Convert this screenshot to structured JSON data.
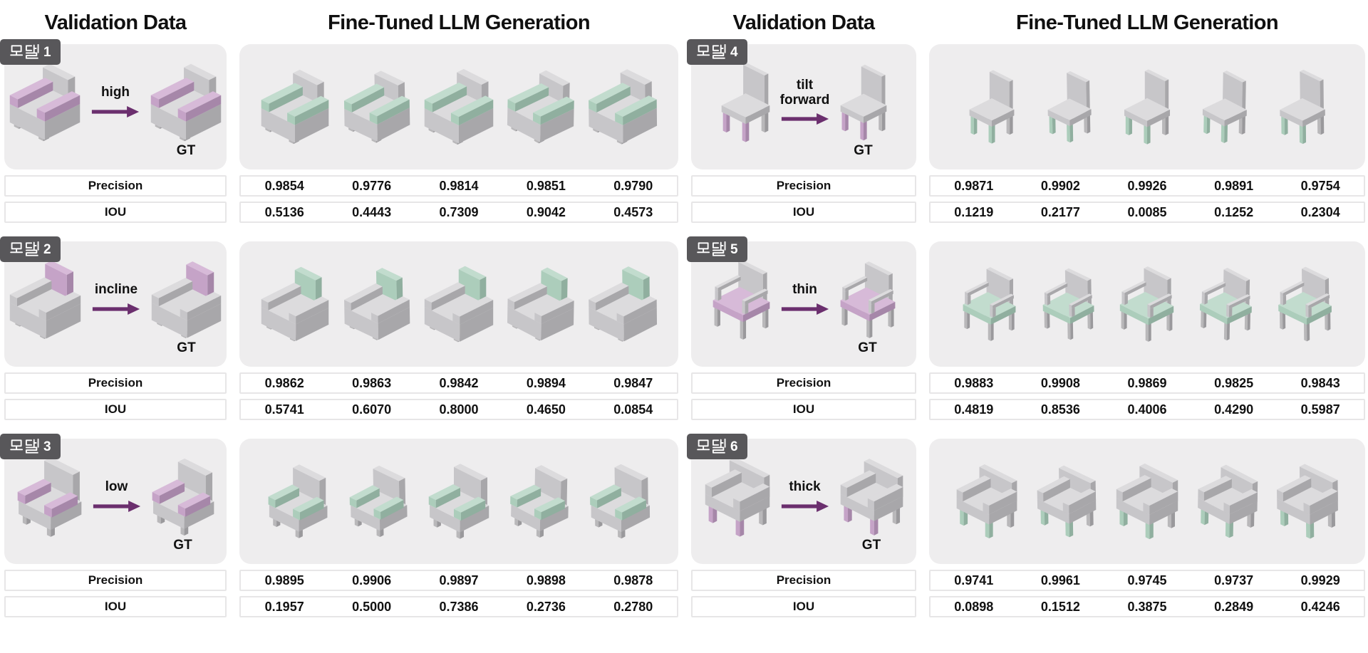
{
  "headers": {
    "validation": "Validation Data",
    "generation": "Fine-Tuned LLM Generation"
  },
  "labels": {
    "precision": "Precision",
    "iou": "IOU",
    "gt": "GT"
  },
  "colors": {
    "highlight_purple": "#c5a3c7",
    "highlight_green": "#accdbb",
    "arrow": "#6b2f6e",
    "badge_bg": "#58575a",
    "panel_bg": "#eeedee",
    "metric_border": "#e7e6e7"
  },
  "models": [
    {
      "badge": {
        "label": "모델 1",
        "number": "1"
      },
      "instruction": "high",
      "chair_type": "club",
      "edit_part": "arms",
      "precision": [
        "0.9854",
        "0.9776",
        "0.9814",
        "0.9851",
        "0.9790"
      ],
      "iou": [
        "0.5136",
        "0.4443",
        "0.7309",
        "0.9042",
        "0.4573"
      ]
    },
    {
      "badge": {
        "label": "모델 2",
        "number": "2"
      },
      "instruction": "incline",
      "chair_type": "low",
      "edit_part": "back",
      "precision": [
        "0.9862",
        "0.9863",
        "0.9842",
        "0.9894",
        "0.9847"
      ],
      "iou": [
        "0.5741",
        "0.6070",
        "0.8000",
        "0.4650",
        "0.0854"
      ]
    },
    {
      "badge": {
        "label": "모델 3",
        "number": "3"
      },
      "instruction": "low",
      "chair_type": "wing",
      "edit_part": "arms",
      "precision": [
        "0.9895",
        "0.9906",
        "0.9897",
        "0.9898",
        "0.9878"
      ],
      "iou": [
        "0.1957",
        "0.5000",
        "0.7386",
        "0.2736",
        "0.2780"
      ]
    },
    {
      "badge": {
        "label": "모델 4",
        "number": "4"
      },
      "instruction": "tilt forward",
      "chair_type": "side",
      "edit_part": "legs",
      "precision": [
        "0.9871",
        "0.9902",
        "0.9926",
        "0.9891",
        "0.9754"
      ],
      "iou": [
        "0.1219",
        "0.2177",
        "0.0085",
        "0.1252",
        "0.2304"
      ]
    },
    {
      "badge": {
        "label": "모델 5",
        "number": "5"
      },
      "instruction": "thin",
      "chair_type": "frame",
      "edit_part": "seat",
      "precision": [
        "0.9883",
        "0.9908",
        "0.9869",
        "0.9825",
        "0.9843"
      ],
      "iou": [
        "0.4819",
        "0.8536",
        "0.4006",
        "0.4290",
        "0.5987"
      ]
    },
    {
      "badge": {
        "label": "모델 6",
        "number": "6"
      },
      "instruction": "thick",
      "chair_type": "boxy",
      "edit_part": "legs",
      "precision": [
        "0.9741",
        "0.9961",
        "0.9745",
        "0.9737",
        "0.9929"
      ],
      "iou": [
        "0.0898",
        "0.1512",
        "0.3875",
        "0.2849",
        "0.4246"
      ]
    }
  ],
  "generation_count": 5
}
